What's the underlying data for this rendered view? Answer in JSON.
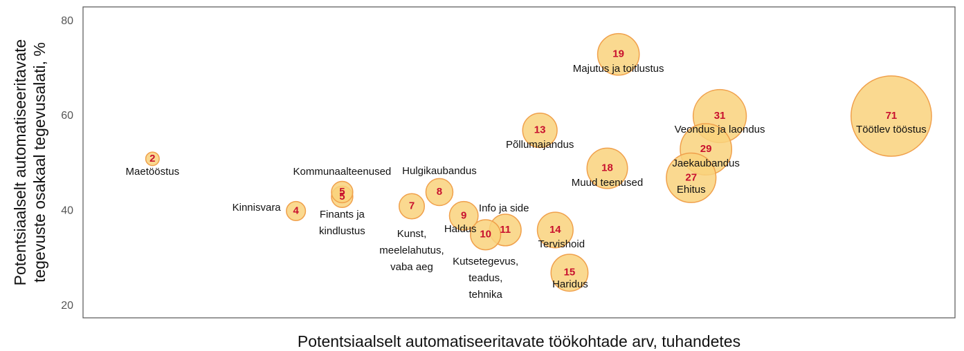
{
  "chart_data": {
    "type": "bubble",
    "xlabel": "Potentsiaalselt automatiseeritavate töökohtade arv, tuhandetes",
    "ylabel": "Potentsiaalselt automatiseeritavate\ntegevuste osakaal tegevusalati, %",
    "xscale": "log",
    "xlim": [
      1.43,
      96.6
    ],
    "ylim": [
      17.5,
      83
    ],
    "yticks": [
      20,
      40,
      60,
      80
    ],
    "grid": false,
    "color": "#f9d27c",
    "edge_color": "#f0a04b",
    "number_color": "#c8102e",
    "labels": [
      "Maetööstus",
      "Kinnisvara",
      "Kommunaalteenused",
      "Finants ja\nkindlustus",
      "Kunst,\nmeelelahutus,\nvaba aeg",
      "Hulgikaubandus",
      "Haldus",
      "Kutsetegevus,\nteadus,\ntehnika",
      "Info ja side",
      "Põllumajandus",
      "Tervishoid",
      "Haridus",
      "Muud teenused",
      "Majutus ja toitlustus",
      "Ehitus",
      "Jaekaubandus",
      "Veondus ja laondus",
      "Töötlev tööstus"
    ],
    "x": [
      2,
      4,
      5,
      5,
      7,
      8,
      9,
      10,
      11,
      13,
      14,
      15,
      18,
      19,
      27,
      29,
      31,
      71
    ],
    "y": [
      51,
      40,
      44,
      43,
      41,
      44,
      39,
      35,
      36,
      57,
      36,
      27,
      49,
      73,
      47,
      53,
      60,
      60
    ]
  }
}
